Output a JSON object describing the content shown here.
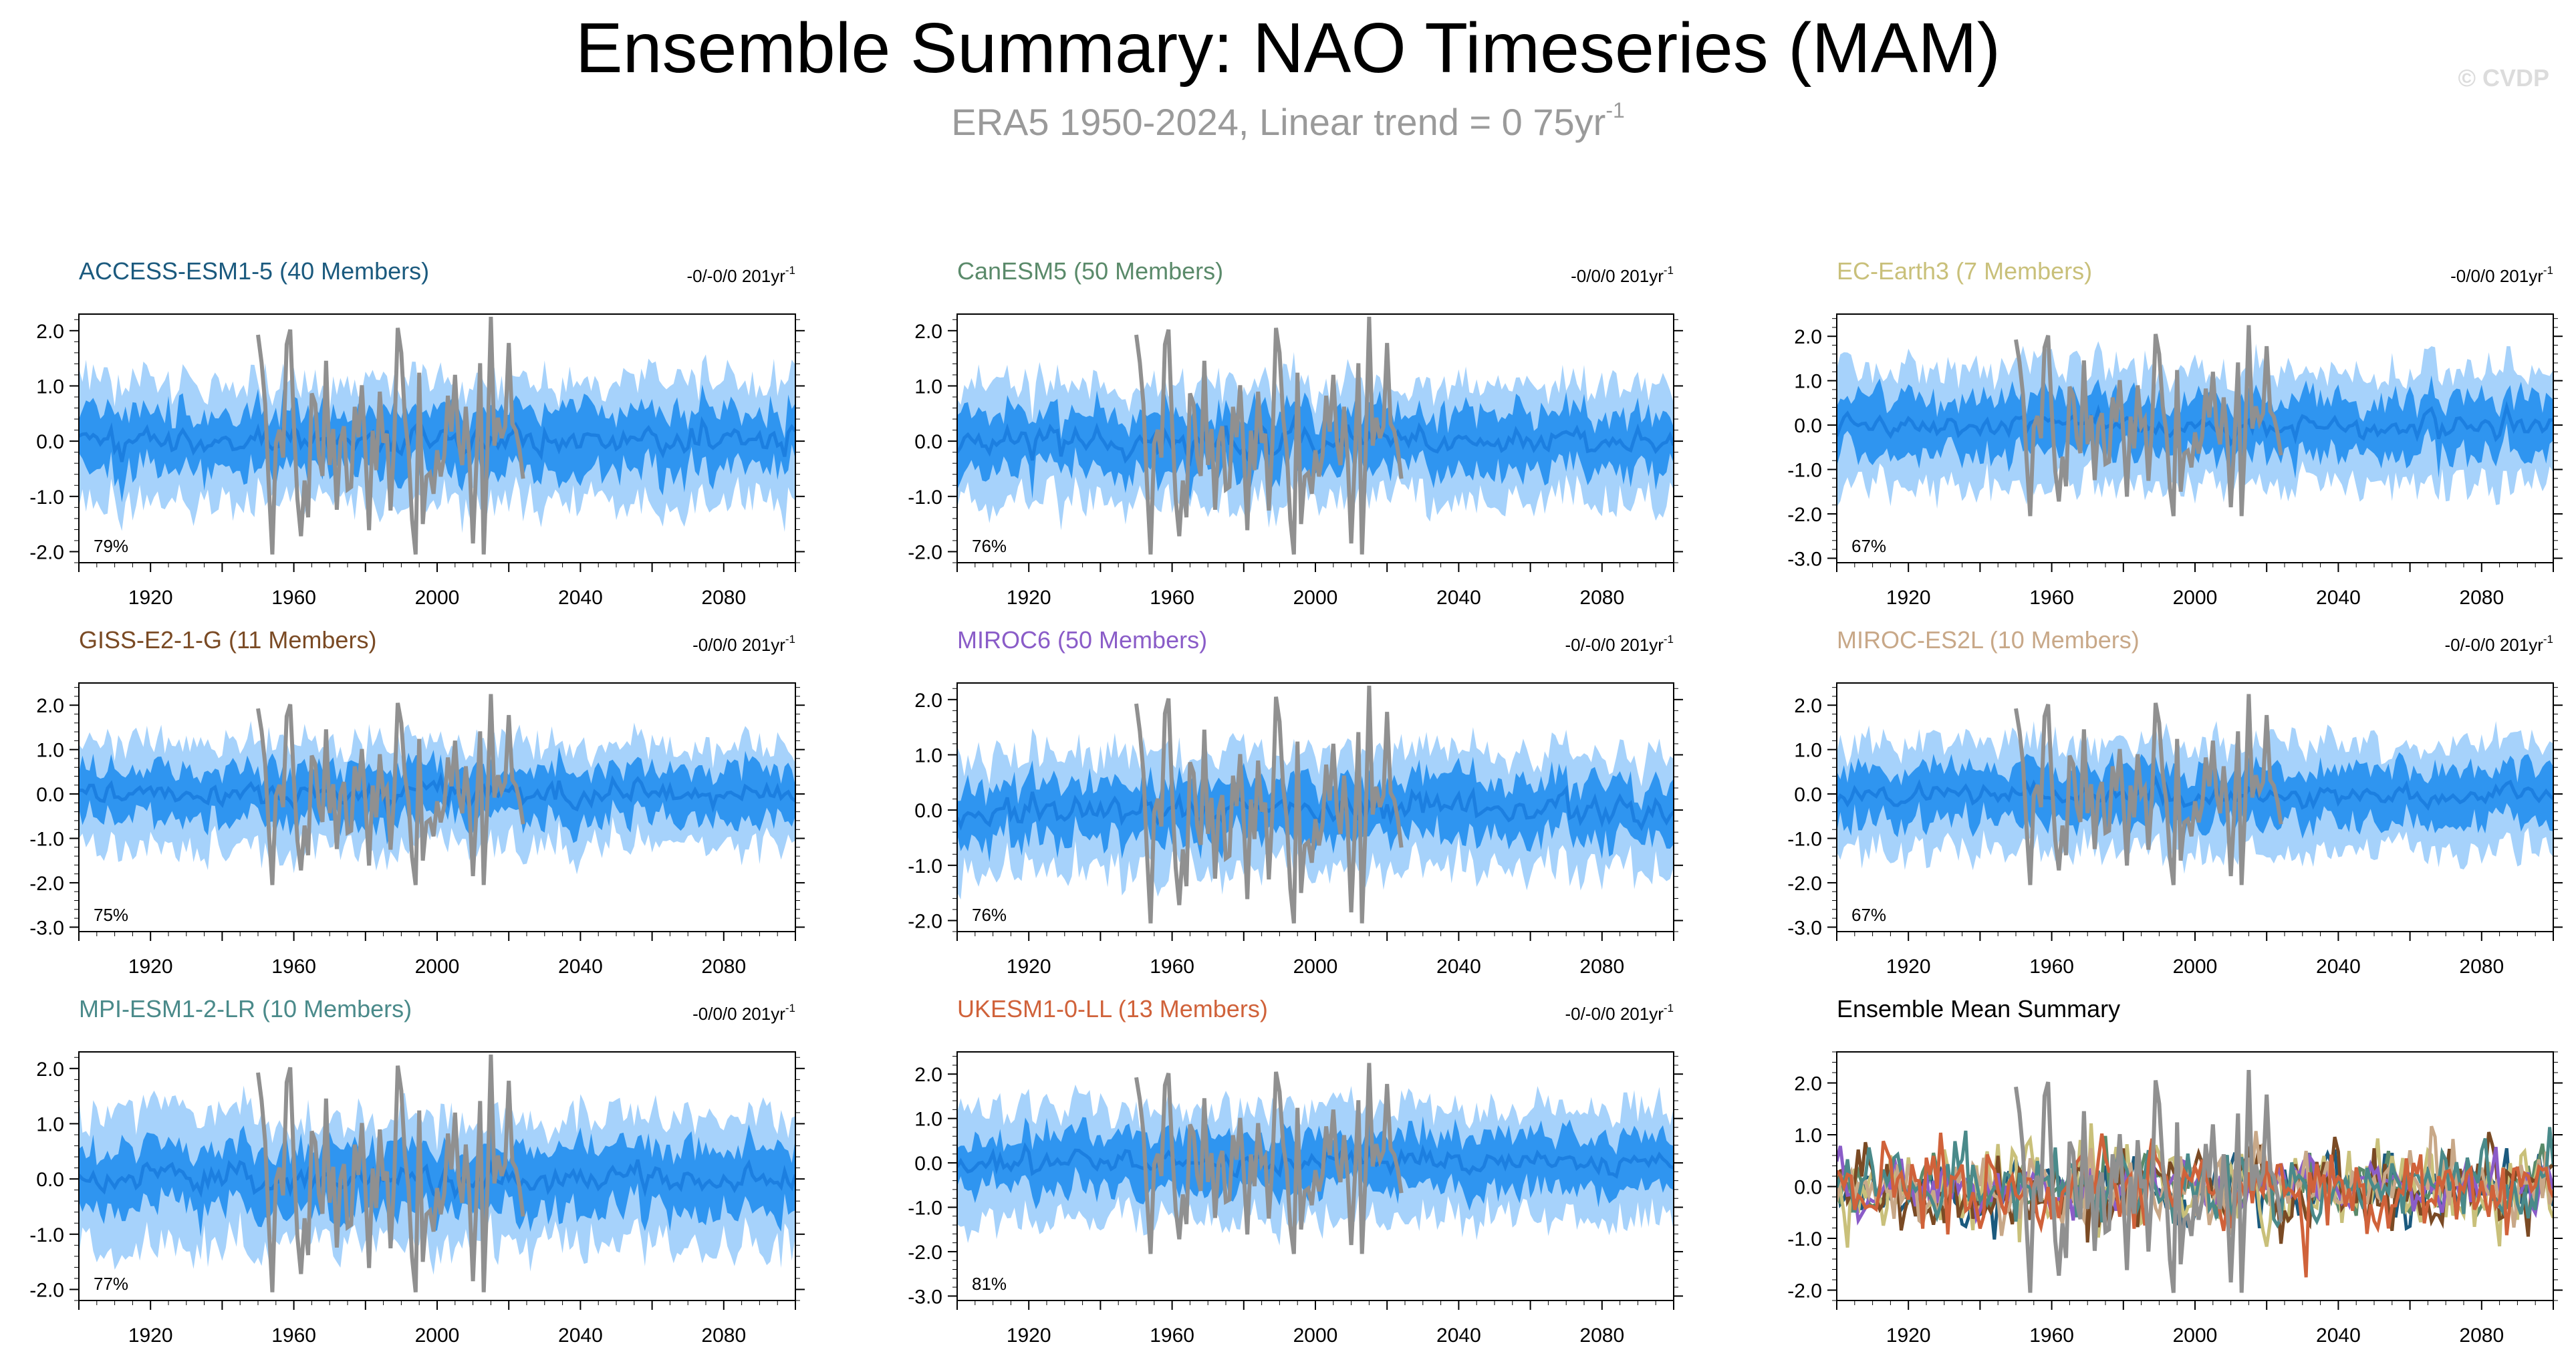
{
  "title": "Ensemble Summary: NAO Timeseries (MAM)",
  "subtitle": {
    "text": "ERA5 1950-2024, Linear trend = 0 75yr",
    "superscript": "-1"
  },
  "watermark": "© CVDP",
  "colors": {
    "inner_band": "#2f95f0",
    "outer_band": "#a6d2fb",
    "ens_mean_line": "#1c7fe0",
    "obs_line": "#909090",
    "axis": "#000000"
  },
  "chart_data": [
    {
      "type": "area",
      "title": "ACCESS-ESM1-5 (40 Members)",
      "title_color": "#1b5a7e",
      "trend_label": "-0/-0/0 201yr",
      "trend_sup": "-1",
      "percent_label": "79%",
      "amp": 1.35,
      "seed": 11,
      "xlim": [
        1900,
        2100
      ],
      "ylim": [
        -2.2,
        2.3
      ],
      "yticks": [
        2.0,
        1.0,
        0.0,
        -1.0,
        -2.0
      ],
      "xticks": [
        1920,
        1960,
        2000,
        2040,
        2080
      ],
      "obs_period": [
        1950,
        2024
      ]
    },
    {
      "type": "area",
      "title": "CanESM5 (50 Members)",
      "title_color": "#5a8a6a",
      "trend_label": "-0/0/0 201yr",
      "trend_sup": "-1",
      "percent_label": "76%",
      "amp": 1.3,
      "seed": 23,
      "xlim": [
        1900,
        2100
      ],
      "ylim": [
        -2.2,
        2.3
      ],
      "yticks": [
        2.0,
        1.0,
        0.0,
        -1.0,
        -2.0
      ],
      "xticks": [
        1920,
        1960,
        2000,
        2040,
        2080
      ],
      "obs_period": [
        1950,
        2024
      ]
    },
    {
      "type": "area",
      "title": "EC-Earth3 (7 Members)",
      "title_color": "#c9c07a",
      "trend_label": "-0/0/0 201yr",
      "trend_sup": "-1",
      "percent_label": "67%",
      "amp": 1.65,
      "seed": 37,
      "xlim": [
        1900,
        2100
      ],
      "ylim": [
        -3.1,
        2.5
      ],
      "yticks": [
        2.0,
        1.0,
        0.0,
        -1.0,
        -2.0,
        -3.0
      ],
      "xticks": [
        1920,
        1960,
        2000,
        2040,
        2080
      ],
      "obs_period": [
        1950,
        2024
      ]
    },
    {
      "type": "area",
      "title": "GISS-E2-1-G (11 Members)",
      "title_color": "#7a4a24",
      "trend_label": "-0/0/0 201yr",
      "trend_sup": "-1",
      "percent_label": "75%",
      "amp": 1.45,
      "seed": 41,
      "xlim": [
        1900,
        2100
      ],
      "ylim": [
        -3.1,
        2.5
      ],
      "yticks": [
        2.0,
        1.0,
        0.0,
        -1.0,
        -2.0,
        -3.0
      ],
      "xticks": [
        1920,
        1960,
        2000,
        2040,
        2080
      ],
      "obs_period": [
        1950,
        2024
      ]
    },
    {
      "type": "area",
      "title": "MIROC6 (50 Members)",
      "title_color": "#8a5cc8",
      "trend_label": "-0/-0/0 201yr",
      "trend_sup": "-1",
      "percent_label": "76%",
      "amp": 1.3,
      "seed": 53,
      "xlim": [
        1900,
        2100
      ],
      "ylim": [
        -2.2,
        2.3
      ],
      "yticks": [
        2.0,
        1.0,
        0.0,
        -1.0,
        -2.0
      ],
      "xticks": [
        1920,
        1960,
        2000,
        2040,
        2080
      ],
      "obs_period": [
        1950,
        2024
      ]
    },
    {
      "type": "area",
      "title": "MIROC-ES2L (10 Members)",
      "title_color": "#c8a888",
      "trend_label": "-0/-0/0 201yr",
      "trend_sup": "-1",
      "percent_label": "67%",
      "amp": 1.5,
      "seed": 67,
      "xlim": [
        1900,
        2100
      ],
      "ylim": [
        -3.1,
        2.5
      ],
      "yticks": [
        2.0,
        1.0,
        0.0,
        -1.0,
        -2.0,
        -3.0
      ],
      "xticks": [
        1920,
        1960,
        2000,
        2040,
        2080
      ],
      "obs_period": [
        1950,
        2024
      ]
    },
    {
      "type": "area",
      "title": "MPI-ESM1-2-LR (10 Members)",
      "title_color": "#4a8a8a",
      "trend_label": "-0/0/0 201yr",
      "trend_sup": "-1",
      "percent_label": "77%",
      "amp": 1.45,
      "seed": 71,
      "xlim": [
        1900,
        2100
      ],
      "ylim": [
        -2.2,
        2.3
      ],
      "yticks": [
        2.0,
        1.0,
        0.0,
        -1.0,
        -2.0
      ],
      "xticks": [
        1920,
        1960,
        2000,
        2040,
        2080
      ],
      "obs_period": [
        1950,
        2024
      ]
    },
    {
      "type": "area",
      "title": "UKESM1-0-LL (13 Members)",
      "title_color": "#d0623a",
      "trend_label": "-0/-0/0 201yr",
      "trend_sup": "-1",
      "percent_label": "81%",
      "amp": 1.55,
      "seed": 83,
      "xlim": [
        1900,
        2100
      ],
      "ylim": [
        -3.1,
        2.5
      ],
      "yticks": [
        2.0,
        1.0,
        0.0,
        -1.0,
        -2.0,
        -3.0
      ],
      "xticks": [
        1920,
        1960,
        2000,
        2040,
        2080
      ],
      "obs_period": [
        1950,
        2024
      ]
    },
    {
      "type": "line",
      "title": "Ensemble Mean Summary",
      "title_color": "#000000",
      "trend_label": "",
      "trend_sup": "",
      "percent_label": "",
      "xlim": [
        1900,
        2100
      ],
      "ylim": [
        -2.2,
        2.6
      ],
      "yticks": [
        2.0,
        1.0,
        0.0,
        -1.0,
        -2.0
      ],
      "xticks": [
        1920,
        1960,
        2000,
        2040,
        2080
      ],
      "obs_period": [
        1950,
        2024
      ],
      "series": [
        {
          "name": "ACCESS-ESM1-5",
          "color": "#1b5a7e",
          "amp": 0.32,
          "seed": 101
        },
        {
          "name": "CanESM5",
          "color": "#5a8a6a",
          "amp": 0.28,
          "seed": 102
        },
        {
          "name": "EC-Earth3",
          "color": "#c9c07a",
          "amp": 0.45,
          "seed": 103
        },
        {
          "name": "GISS-E2-1-G",
          "color": "#7a4a24",
          "amp": 0.4,
          "seed": 104
        },
        {
          "name": "MIROC6",
          "color": "#8a5cc8",
          "amp": 0.25,
          "seed": 105
        },
        {
          "name": "MIROC-ES2L",
          "color": "#c8a888",
          "amp": 0.35,
          "seed": 106
        },
        {
          "name": "MPI-ESM1-2-LR",
          "color": "#4a8a8a",
          "amp": 0.38,
          "seed": 107
        },
        {
          "name": "UKESM1-0-LL",
          "color": "#d0623a",
          "amp": 0.42,
          "seed": 108
        }
      ]
    }
  ]
}
